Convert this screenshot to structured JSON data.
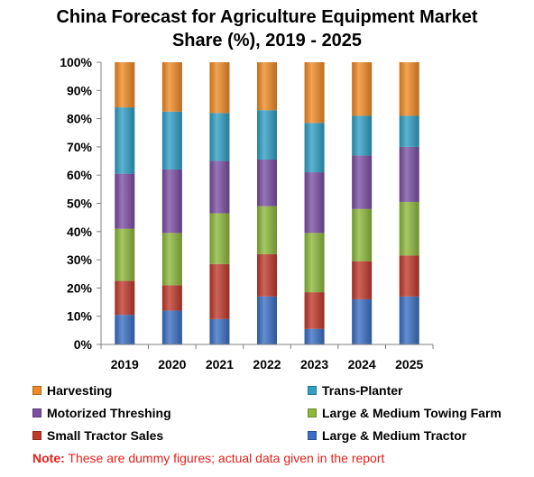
{
  "title_line1": "China Forecast for Agriculture Equipment Market",
  "title_line2": "Share (%), 2019 - 2025",
  "note_label": "Note:",
  "note_text": "These are dummy figures; actual data given in the report",
  "chart_data": {
    "type": "bar",
    "stacked": true,
    "title": "China Forecast for Agriculture Equipment Market Share (%), 2019 - 2025",
    "categories": [
      "2019",
      "2020",
      "2021",
      "2022",
      "2023",
      "2024",
      "2025"
    ],
    "ylim": [
      0,
      100
    ],
    "yticks": [
      "0%",
      "10%",
      "20%",
      "30%",
      "40%",
      "50%",
      "60%",
      "70%",
      "80%",
      "90%",
      "100%"
    ],
    "grid": false,
    "legend_position": "bottom",
    "series": [
      {
        "name": "Large & Medium Tractor",
        "color": "#3a6fc4",
        "values": [
          10.5,
          12,
          9,
          17,
          5.5,
          16,
          17
        ]
      },
      {
        "name": "Small Tractor Sales",
        "color": "#c0392b",
        "values": [
          12,
          9,
          19.5,
          15,
          13,
          13.5,
          14.5
        ]
      },
      {
        "name": "Large & Medium Towing Farm",
        "color": "#8db83a",
        "values": [
          18.5,
          18.5,
          18,
          17,
          21,
          18.5,
          19
        ]
      },
      {
        "name": "Motorized Threshing",
        "color": "#7a4fa3",
        "values": [
          19.5,
          22.5,
          18.5,
          16.5,
          21.5,
          19,
          19.5
        ]
      },
      {
        "name": "Trans-Planter",
        "color": "#2f9fc5",
        "values": [
          23.5,
          20.5,
          17,
          17.5,
          17.5,
          14,
          11
        ]
      },
      {
        "name": "Harvesting",
        "color": "#f08a24",
        "values": [
          16,
          17.5,
          18,
          17,
          21.5,
          19,
          19
        ]
      }
    ]
  },
  "legend": [
    {
      "label": "Harvesting",
      "color": "#f08a24"
    },
    {
      "label": "Trans-Planter",
      "color": "#2f9fc5"
    },
    {
      "label": "Motorized Threshing",
      "color": "#7a4fa3"
    },
    {
      "label": "Large & Medium Towing Farm",
      "color": "#8db83a"
    },
    {
      "label": "Small Tractor Sales",
      "color": "#c0392b"
    },
    {
      "label": "Large & Medium Tractor",
      "color": "#3a6fc4"
    }
  ]
}
